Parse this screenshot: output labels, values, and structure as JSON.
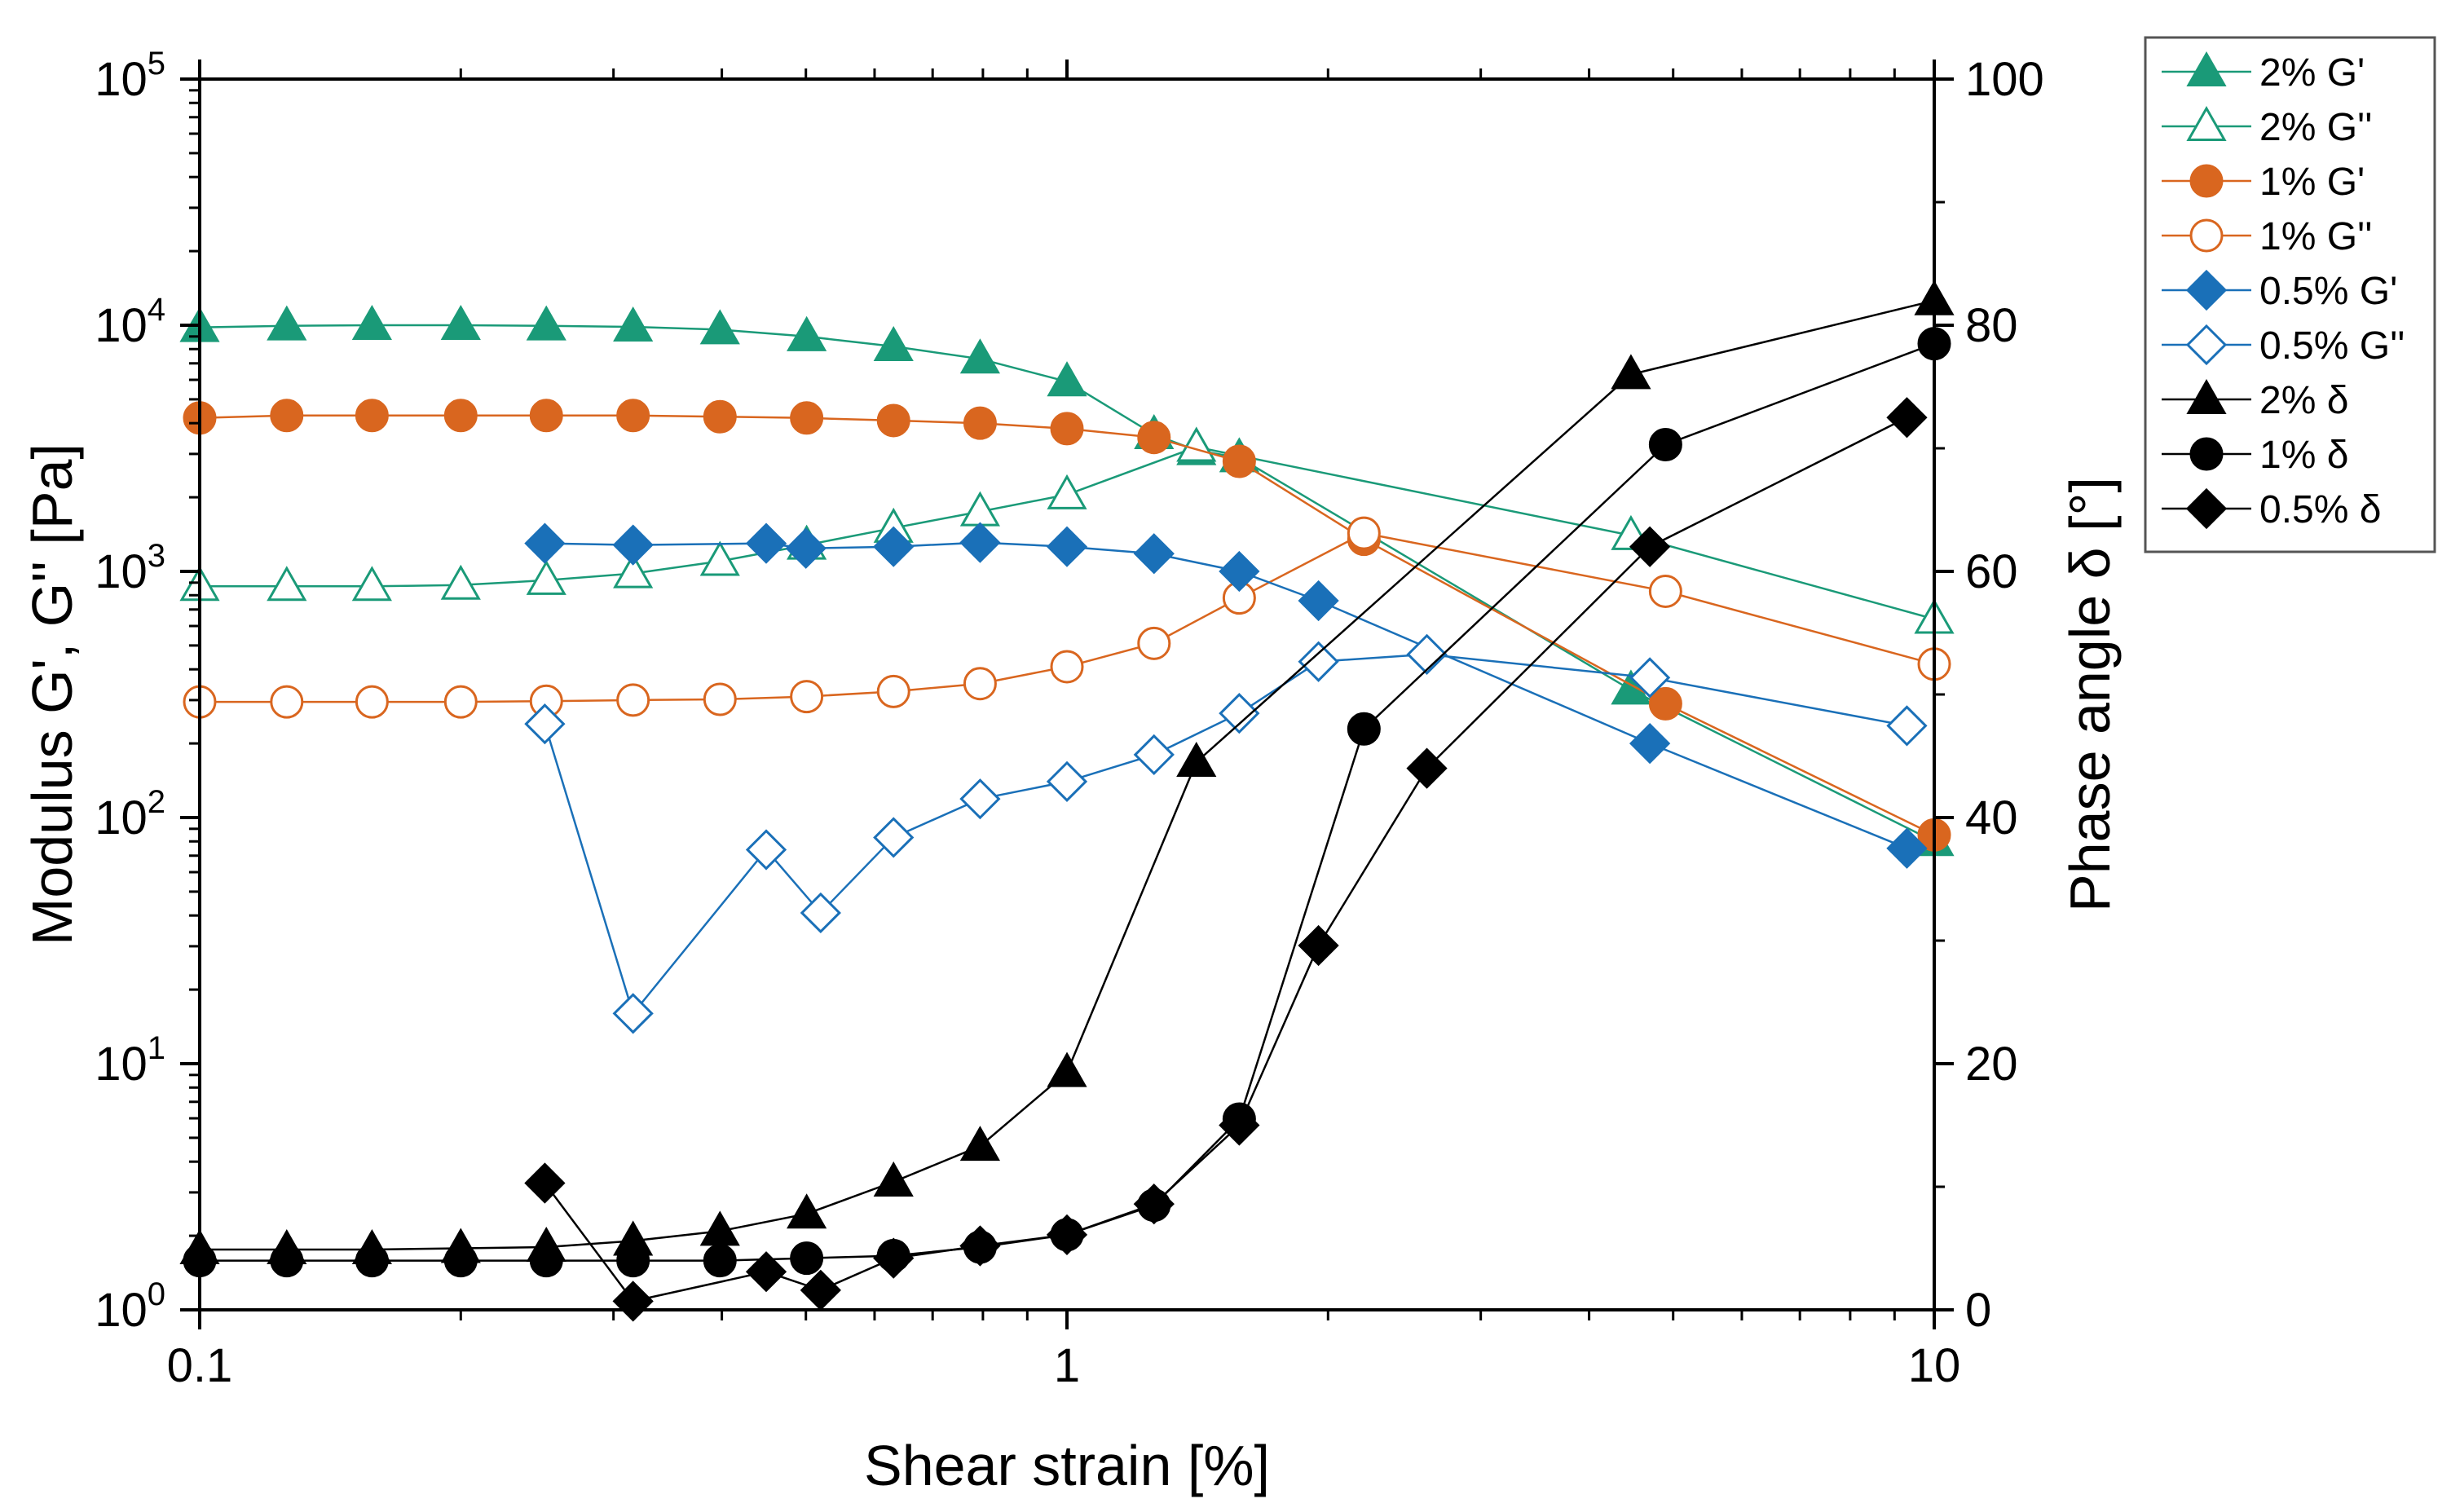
{
  "chart_data": {
    "type": "scatter",
    "title": "",
    "xlabel": "Shear strain [%]",
    "ylabel_left": "Modulus G', G'' [Pa]",
    "ylabel_right": "Phase angle δ [°]",
    "xscale": "log",
    "xlim": [
      0.1,
      10
    ],
    "xticks": [
      {
        "value": 0.1,
        "label": "0.1"
      },
      {
        "value": 1,
        "label": "1"
      },
      {
        "value": 10,
        "label": "10"
      }
    ],
    "yscale_left": "log",
    "ylim_left": [
      1,
      100000
    ],
    "yticks_left": [
      {
        "value": 1,
        "base": "10",
        "exp": "0"
      },
      {
        "value": 10,
        "base": "10",
        "exp": "1"
      },
      {
        "value": 100,
        "base": "10",
        "exp": "2"
      },
      {
        "value": 1000,
        "base": "10",
        "exp": "3"
      },
      {
        "value": 10000,
        "base": "10",
        "exp": "4"
      },
      {
        "value": 100000,
        "base": "10",
        "exp": "5"
      }
    ],
    "ylim_right": [
      0,
      100
    ],
    "yticks_right": [
      {
        "value": 0,
        "label": "0"
      },
      {
        "value": 20,
        "label": "20"
      },
      {
        "value": 40,
        "label": "40"
      },
      {
        "value": 60,
        "label": "60"
      },
      {
        "value": 80,
        "label": "80"
      },
      {
        "value": 100,
        "label": "100"
      }
    ],
    "legend_position": "outside-top-right",
    "grid": false,
    "series": [
      {
        "name": "2% G'",
        "axis": "left",
        "color": "#1a9a78",
        "marker": "triangle",
        "filled": true,
        "x": [
          0.1,
          0.126,
          0.158,
          0.2,
          0.251,
          0.316,
          0.398,
          0.501,
          0.631,
          0.794,
          1.0,
          1.26,
          1.41,
          1.58,
          4.47,
          10
        ],
        "y": [
          9800,
          9950,
          10000,
          10000,
          9950,
          9850,
          9600,
          9000,
          8200,
          7300,
          5900,
          3600,
          3100,
          2900,
          330,
          80
        ]
      },
      {
        "name": "2% G''",
        "axis": "left",
        "color": "#1a9a78",
        "marker": "triangle",
        "filled": false,
        "x": [
          0.1,
          0.126,
          0.158,
          0.2,
          0.251,
          0.316,
          0.398,
          0.501,
          0.631,
          0.794,
          1.0,
          1.41,
          4.47,
          10
        ],
        "y": [
          870,
          870,
          870,
          880,
          920,
          980,
          1100,
          1280,
          1500,
          1750,
          2050,
          3200,
          1400,
          640
        ]
      },
      {
        "name": "1% G'",
        "axis": "left",
        "color": "#d9661f",
        "marker": "circle",
        "filled": true,
        "x": [
          0.1,
          0.126,
          0.158,
          0.2,
          0.251,
          0.316,
          0.398,
          0.501,
          0.631,
          0.794,
          1.0,
          1.26,
          1.58,
          2.2,
          4.9,
          10
        ],
        "y": [
          4200,
          4300,
          4300,
          4300,
          4300,
          4300,
          4250,
          4200,
          4100,
          4000,
          3800,
          3500,
          2800,
          1350,
          290,
          85
        ]
      },
      {
        "name": "1% G''",
        "axis": "left",
        "color": "#d9661f",
        "marker": "circle",
        "filled": false,
        "x": [
          0.1,
          0.126,
          0.158,
          0.2,
          0.251,
          0.316,
          0.398,
          0.501,
          0.631,
          0.794,
          1.0,
          1.26,
          1.58,
          2.2,
          4.9,
          10
        ],
        "y": [
          295,
          295,
          295,
          295,
          297,
          300,
          302,
          310,
          325,
          350,
          410,
          510,
          780,
          1430,
          830,
          420
        ]
      },
      {
        "name": "0.5% G'",
        "axis": "left",
        "color": "#1a70b8",
        "marker": "diamond",
        "filled": true,
        "x": [
          0.25,
          0.316,
          0.45,
          0.5,
          0.631,
          0.794,
          1.0,
          1.26,
          1.58,
          1.95,
          4.7,
          9.3
        ],
        "y": [
          1300,
          1280,
          1300,
          1240,
          1260,
          1310,
          1260,
          1180,
          1000,
          760,
          200,
          75
        ]
      },
      {
        "name": "0.5% G''",
        "axis": "left",
        "color": "#1a70b8",
        "marker": "diamond",
        "filled": false,
        "x": [
          0.25,
          0.316,
          0.45,
          0.52,
          0.631,
          0.794,
          1.0,
          1.26,
          1.58,
          1.95,
          2.6,
          4.7,
          9.3
        ],
        "y": [
          240,
          16,
          74,
          41,
          83,
          119,
          140,
          180,
          265,
          430,
          460,
          370,
          236
        ]
      },
      {
        "name": "2% δ",
        "axis": "right",
        "color": "#000000",
        "marker": "triangle",
        "filled": true,
        "x": [
          0.1,
          0.126,
          0.158,
          0.2,
          0.251,
          0.316,
          0.398,
          0.501,
          0.631,
          0.794,
          1.0,
          1.41,
          4.47,
          10
        ],
        "y": [
          4.9,
          4.9,
          4.9,
          5.0,
          5.1,
          5.6,
          6.4,
          7.8,
          10.4,
          13.3,
          19.3,
          44.5,
          76.0,
          82.0
        ]
      },
      {
        "name": "1% δ",
        "axis": "right",
        "color": "#000000",
        "marker": "circle",
        "filled": true,
        "x": [
          0.1,
          0.126,
          0.158,
          0.2,
          0.251,
          0.316,
          0.398,
          0.501,
          0.631,
          0.794,
          1.0,
          1.26,
          1.58,
          2.2,
          4.9,
          10
        ],
        "y": [
          4.0,
          4.0,
          4.0,
          4.0,
          4.0,
          4.0,
          4.0,
          4.2,
          4.4,
          5.1,
          6.1,
          8.5,
          15.5,
          47.2,
          70.3,
          78.5
        ]
      },
      {
        "name": "0.5% δ",
        "axis": "right",
        "color": "#000000",
        "marker": "diamond",
        "filled": true,
        "x": [
          0.25,
          0.316,
          0.45,
          0.52,
          0.631,
          0.794,
          1.0,
          1.26,
          1.58,
          1.95,
          2.6,
          4.7,
          9.3
        ],
        "y": [
          10.3,
          0.7,
          3.1,
          1.6,
          4.2,
          5.2,
          6.1,
          8.6,
          15.0,
          29.6,
          44.0,
          62.0,
          72.5
        ]
      }
    ]
  }
}
